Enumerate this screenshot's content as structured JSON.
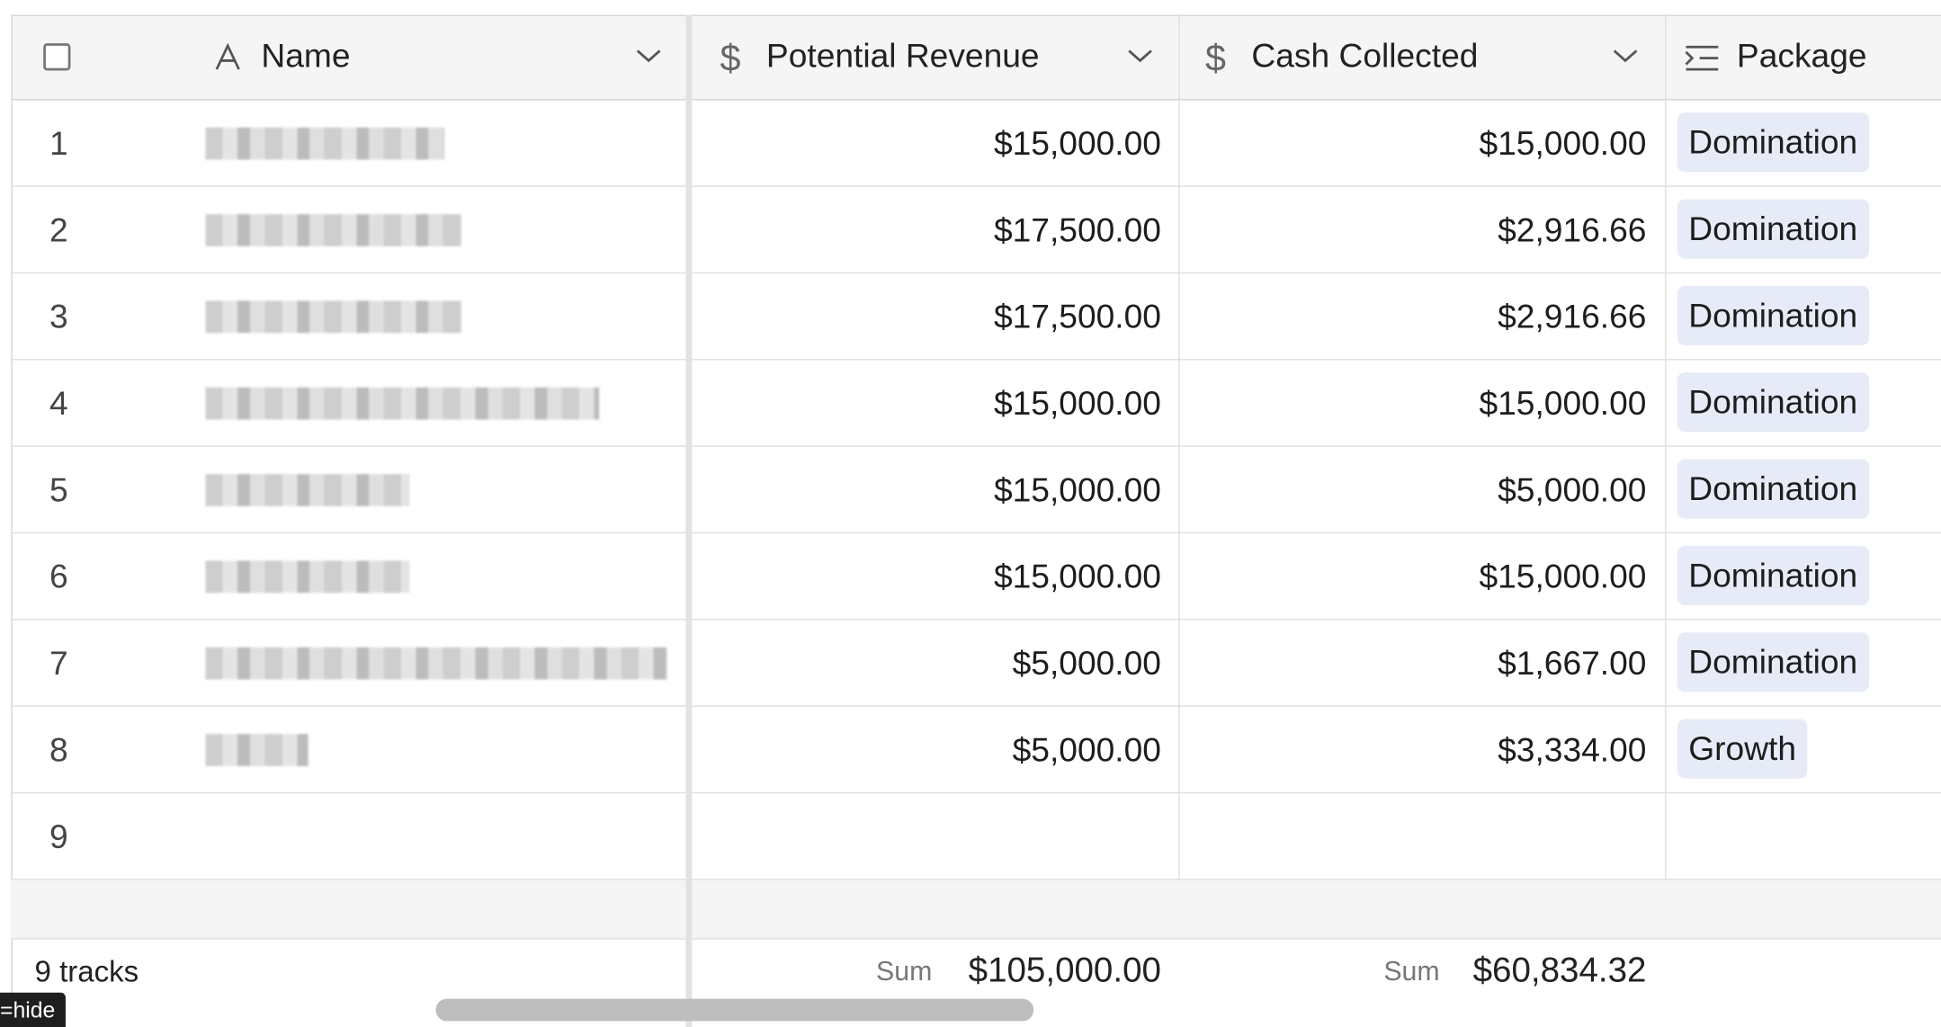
{
  "header": {
    "columns": [
      "Name",
      "Potential Revenue",
      "Cash Collected",
      "Package"
    ]
  },
  "rows": [
    {
      "number": "1",
      "potential_revenue": "$15,000.00",
      "cash_collected": "$15,000.00",
      "package": "Domination"
    },
    {
      "number": "2",
      "potential_revenue": "$17,500.00",
      "cash_collected": "$2,916.66",
      "package": "Domination"
    },
    {
      "number": "3",
      "potential_revenue": "$17,500.00",
      "cash_collected": "$2,916.66",
      "package": "Domination"
    },
    {
      "number": "4",
      "potential_revenue": "$15,000.00",
      "cash_collected": "$15,000.00",
      "package": "Domination"
    },
    {
      "number": "5",
      "potential_revenue": "$15,000.00",
      "cash_collected": "$5,000.00",
      "package": "Domination"
    },
    {
      "number": "6",
      "potential_revenue": "$15,000.00",
      "cash_collected": "$15,000.00",
      "package": "Domination"
    },
    {
      "number": "7",
      "potential_revenue": "$5,000.00",
      "cash_collected": "$1,667.00",
      "package": "Domination"
    },
    {
      "number": "8",
      "potential_revenue": "$5,000.00",
      "cash_collected": "$3,334.00",
      "package": "Growth"
    },
    {
      "number": "9"
    }
  ],
  "footer": {
    "record_count": "9 tracks",
    "potential_revenue_label": "Sum",
    "potential_revenue_sum": "$105,000.00",
    "cash_collected_label": "Sum",
    "cash_collected_sum": "$60,834.32"
  },
  "tooltip": "=hide"
}
